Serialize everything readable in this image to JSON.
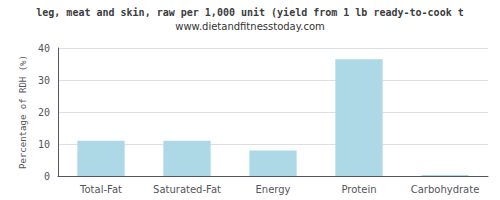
{
  "chart_data": {
    "type": "bar",
    "title": "leg, meat and skin, raw per 1,000 unit (yield from 1 lb ready-to-cook t",
    "subtitle": "www.dietandfitnesstoday.com",
    "categories": [
      "Total-Fat",
      "Saturated-Fat",
      "Energy",
      "Protein",
      "Carbohydrate"
    ],
    "values": [
      11,
      11,
      8,
      36.5,
      0.3
    ],
    "color": "#add8e6",
    "ylabel": "Percentage of RDH (%)",
    "ylim": [
      0,
      40
    ],
    "yticks": [
      0,
      10,
      20,
      30,
      40
    ],
    "grid": true
  }
}
